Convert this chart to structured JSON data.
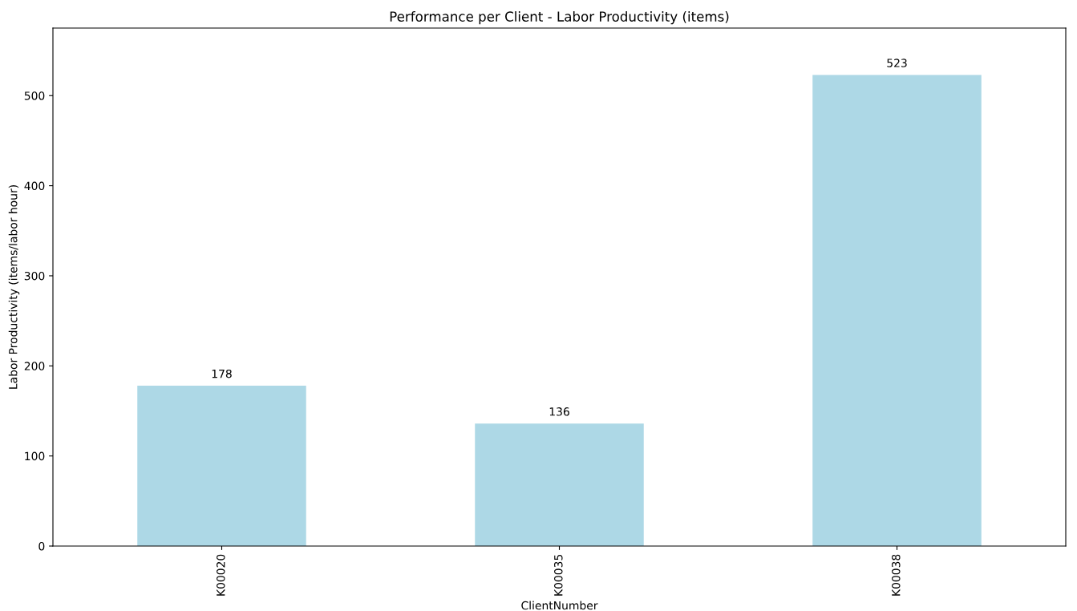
{
  "chart_data": {
    "type": "bar",
    "title": "Performance per Client - Labor Productivity (items)",
    "xlabel": "ClientNumber",
    "ylabel": "Labor Productivity (items/labor hour)",
    "categories": [
      "K00020",
      "K00035",
      "K00038"
    ],
    "values": [
      178,
      136,
      523
    ],
    "color": "#add8e6",
    "ylim": [
      0,
      575
    ],
    "yticks": [
      0,
      100,
      200,
      300,
      400,
      500
    ],
    "data_labels": true,
    "grid": false
  }
}
